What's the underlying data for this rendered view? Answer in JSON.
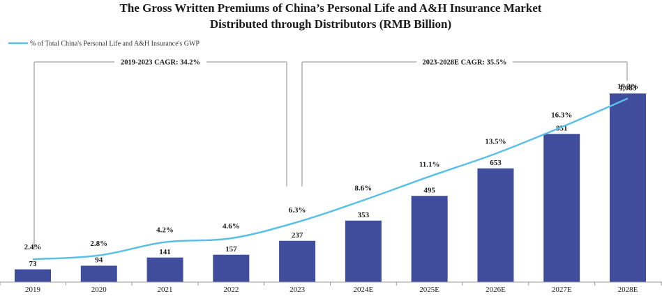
{
  "chart_data": {
    "type": "bar",
    "title": [
      "The Gross Written Premiums of China’s Personal Life and A&H Insurance Market",
      "Distributed through Distributors (RMB Billion)"
    ],
    "categories": [
      "2019",
      "2020",
      "2021",
      "2022",
      "2023",
      "2024E",
      "2025E",
      "2026E",
      "2027E",
      "2028E"
    ],
    "bar_labels": [
      "73",
      "94",
      "141",
      "157",
      "237",
      "353",
      "495",
      "653",
      "851",
      "1,083"
    ],
    "series": [
      {
        "kind": "bar",
        "values": [
          73,
          94,
          141,
          157,
          237,
          353,
          495,
          653,
          851,
          1083
        ],
        "color": "#3f4d9c"
      },
      {
        "kind": "line",
        "name": "% of Total China's Personal Life and A&H Insurance's GWP",
        "values": [
          2.4,
          2.8,
          4.2,
          4.6,
          6.3,
          8.6,
          11.1,
          13.5,
          16.3,
          19.3
        ],
        "labels": [
          "2.4%",
          "2.8%",
          "4.2%",
          "4.6%",
          "6.3%",
          "8.6%",
          "11.1%",
          "13.5%",
          "16.3%",
          "19.3%"
        ],
        "color": "#5bc0e6"
      }
    ],
    "annotations": [
      {
        "text": "2019-2023 CAGR: 34.2%",
        "from": "2019",
        "to": "2023"
      },
      {
        "text": "2023-2028E CAGR: 35.5%",
        "from": "2023",
        "to": "2028E"
      }
    ],
    "legend": "top-left",
    "grid": false,
    "ylim": [
      0,
      1120
    ],
    "y2lim": [
      0,
      20.5
    ]
  }
}
